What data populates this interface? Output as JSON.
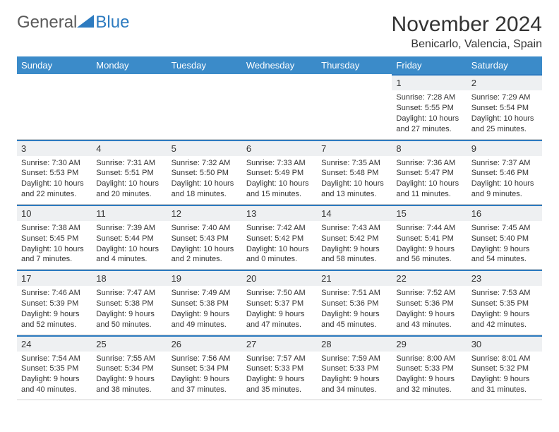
{
  "logo": {
    "part1": "General",
    "part2": "Blue"
  },
  "title": "November 2024",
  "location": "Benicarlo, Valencia, Spain",
  "colors": {
    "header_bg": "#3b8bc9",
    "header_text": "#ffffff",
    "daynum_bg": "#eef0f2",
    "day_border": "#2d7bc0",
    "cell_border": "#cfcfcf",
    "logo_gray": "#5a5a5a",
    "logo_blue": "#2d7bc0",
    "text": "#333333",
    "background": "#ffffff"
  },
  "weekdays": [
    "Sunday",
    "Monday",
    "Tuesday",
    "Wednesday",
    "Thursday",
    "Friday",
    "Saturday"
  ],
  "weeks": [
    [
      null,
      null,
      null,
      null,
      null,
      {
        "n": "1",
        "sr": "Sunrise: 7:28 AM",
        "ss": "Sunset: 5:55 PM",
        "d1": "Daylight: 10 hours",
        "d2": "and 27 minutes."
      },
      {
        "n": "2",
        "sr": "Sunrise: 7:29 AM",
        "ss": "Sunset: 5:54 PM",
        "d1": "Daylight: 10 hours",
        "d2": "and 25 minutes."
      }
    ],
    [
      {
        "n": "3",
        "sr": "Sunrise: 7:30 AM",
        "ss": "Sunset: 5:53 PM",
        "d1": "Daylight: 10 hours",
        "d2": "and 22 minutes."
      },
      {
        "n": "4",
        "sr": "Sunrise: 7:31 AM",
        "ss": "Sunset: 5:51 PM",
        "d1": "Daylight: 10 hours",
        "d2": "and 20 minutes."
      },
      {
        "n": "5",
        "sr": "Sunrise: 7:32 AM",
        "ss": "Sunset: 5:50 PM",
        "d1": "Daylight: 10 hours",
        "d2": "and 18 minutes."
      },
      {
        "n": "6",
        "sr": "Sunrise: 7:33 AM",
        "ss": "Sunset: 5:49 PM",
        "d1": "Daylight: 10 hours",
        "d2": "and 15 minutes."
      },
      {
        "n": "7",
        "sr": "Sunrise: 7:35 AM",
        "ss": "Sunset: 5:48 PM",
        "d1": "Daylight: 10 hours",
        "d2": "and 13 minutes."
      },
      {
        "n": "8",
        "sr": "Sunrise: 7:36 AM",
        "ss": "Sunset: 5:47 PM",
        "d1": "Daylight: 10 hours",
        "d2": "and 11 minutes."
      },
      {
        "n": "9",
        "sr": "Sunrise: 7:37 AM",
        "ss": "Sunset: 5:46 PM",
        "d1": "Daylight: 10 hours",
        "d2": "and 9 minutes."
      }
    ],
    [
      {
        "n": "10",
        "sr": "Sunrise: 7:38 AM",
        "ss": "Sunset: 5:45 PM",
        "d1": "Daylight: 10 hours",
        "d2": "and 7 minutes."
      },
      {
        "n": "11",
        "sr": "Sunrise: 7:39 AM",
        "ss": "Sunset: 5:44 PM",
        "d1": "Daylight: 10 hours",
        "d2": "and 4 minutes."
      },
      {
        "n": "12",
        "sr": "Sunrise: 7:40 AM",
        "ss": "Sunset: 5:43 PM",
        "d1": "Daylight: 10 hours",
        "d2": "and 2 minutes."
      },
      {
        "n": "13",
        "sr": "Sunrise: 7:42 AM",
        "ss": "Sunset: 5:42 PM",
        "d1": "Daylight: 10 hours",
        "d2": "and 0 minutes."
      },
      {
        "n": "14",
        "sr": "Sunrise: 7:43 AM",
        "ss": "Sunset: 5:42 PM",
        "d1": "Daylight: 9 hours",
        "d2": "and 58 minutes."
      },
      {
        "n": "15",
        "sr": "Sunrise: 7:44 AM",
        "ss": "Sunset: 5:41 PM",
        "d1": "Daylight: 9 hours",
        "d2": "and 56 minutes."
      },
      {
        "n": "16",
        "sr": "Sunrise: 7:45 AM",
        "ss": "Sunset: 5:40 PM",
        "d1": "Daylight: 9 hours",
        "d2": "and 54 minutes."
      }
    ],
    [
      {
        "n": "17",
        "sr": "Sunrise: 7:46 AM",
        "ss": "Sunset: 5:39 PM",
        "d1": "Daylight: 9 hours",
        "d2": "and 52 minutes."
      },
      {
        "n": "18",
        "sr": "Sunrise: 7:47 AM",
        "ss": "Sunset: 5:38 PM",
        "d1": "Daylight: 9 hours",
        "d2": "and 50 minutes."
      },
      {
        "n": "19",
        "sr": "Sunrise: 7:49 AM",
        "ss": "Sunset: 5:38 PM",
        "d1": "Daylight: 9 hours",
        "d2": "and 49 minutes."
      },
      {
        "n": "20",
        "sr": "Sunrise: 7:50 AM",
        "ss": "Sunset: 5:37 PM",
        "d1": "Daylight: 9 hours",
        "d2": "and 47 minutes."
      },
      {
        "n": "21",
        "sr": "Sunrise: 7:51 AM",
        "ss": "Sunset: 5:36 PM",
        "d1": "Daylight: 9 hours",
        "d2": "and 45 minutes."
      },
      {
        "n": "22",
        "sr": "Sunrise: 7:52 AM",
        "ss": "Sunset: 5:36 PM",
        "d1": "Daylight: 9 hours",
        "d2": "and 43 minutes."
      },
      {
        "n": "23",
        "sr": "Sunrise: 7:53 AM",
        "ss": "Sunset: 5:35 PM",
        "d1": "Daylight: 9 hours",
        "d2": "and 42 minutes."
      }
    ],
    [
      {
        "n": "24",
        "sr": "Sunrise: 7:54 AM",
        "ss": "Sunset: 5:35 PM",
        "d1": "Daylight: 9 hours",
        "d2": "and 40 minutes."
      },
      {
        "n": "25",
        "sr": "Sunrise: 7:55 AM",
        "ss": "Sunset: 5:34 PM",
        "d1": "Daylight: 9 hours",
        "d2": "and 38 minutes."
      },
      {
        "n": "26",
        "sr": "Sunrise: 7:56 AM",
        "ss": "Sunset: 5:34 PM",
        "d1": "Daylight: 9 hours",
        "d2": "and 37 minutes."
      },
      {
        "n": "27",
        "sr": "Sunrise: 7:57 AM",
        "ss": "Sunset: 5:33 PM",
        "d1": "Daylight: 9 hours",
        "d2": "and 35 minutes."
      },
      {
        "n": "28",
        "sr": "Sunrise: 7:59 AM",
        "ss": "Sunset: 5:33 PM",
        "d1": "Daylight: 9 hours",
        "d2": "and 34 minutes."
      },
      {
        "n": "29",
        "sr": "Sunrise: 8:00 AM",
        "ss": "Sunset: 5:33 PM",
        "d1": "Daylight: 9 hours",
        "d2": "and 32 minutes."
      },
      {
        "n": "30",
        "sr": "Sunrise: 8:01 AM",
        "ss": "Sunset: 5:32 PM",
        "d1": "Daylight: 9 hours",
        "d2": "and 31 minutes."
      }
    ]
  ]
}
